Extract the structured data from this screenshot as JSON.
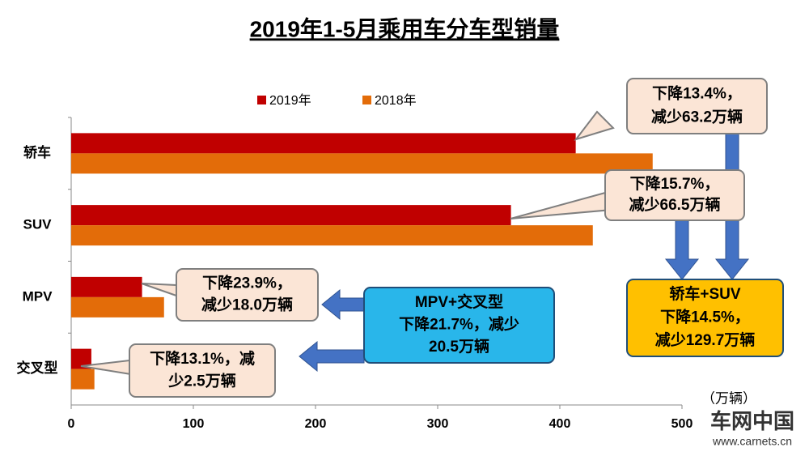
{
  "chart_data": {
    "type": "hbar",
    "title": "2019年1-5月乘用车分车型销量",
    "x_label": "（万辆）",
    "categories": [
      "轿车",
      "SUV",
      "MPV",
      "交叉型"
    ],
    "series": [
      {
        "name": "2019年",
        "color": "#c00000",
        "values": [
          413,
          360,
          58,
          16.5
        ]
      },
      {
        "name": "2018年",
        "color": "#e36c09",
        "values": [
          476,
          427,
          76,
          19
        ]
      }
    ],
    "xlim": [
      0,
      500
    ],
    "xticks": [
      0,
      100,
      200,
      300,
      400,
      500
    ],
    "annotations": [
      {
        "lines": [
          "下降13.4%，",
          "减少63.2万辆"
        ]
      },
      {
        "lines": [
          "下降15.7%，",
          "减少66.5万辆"
        ]
      },
      {
        "lines": [
          "下降23.9%，",
          "减少18.0万辆"
        ]
      },
      {
        "lines": [
          "下降13.1%，减",
          "少2.5万辆"
        ]
      },
      {
        "lines": [
          "MPV+交叉型",
          "下降21.7%，减少",
          "20.5万辆"
        ]
      },
      {
        "lines": [
          "轿车+SUV",
          "下降14.5%，",
          "减少129.7万辆"
        ]
      }
    ],
    "watermark": {
      "name": "车网中国",
      "url": "www.carnets.cn"
    }
  }
}
